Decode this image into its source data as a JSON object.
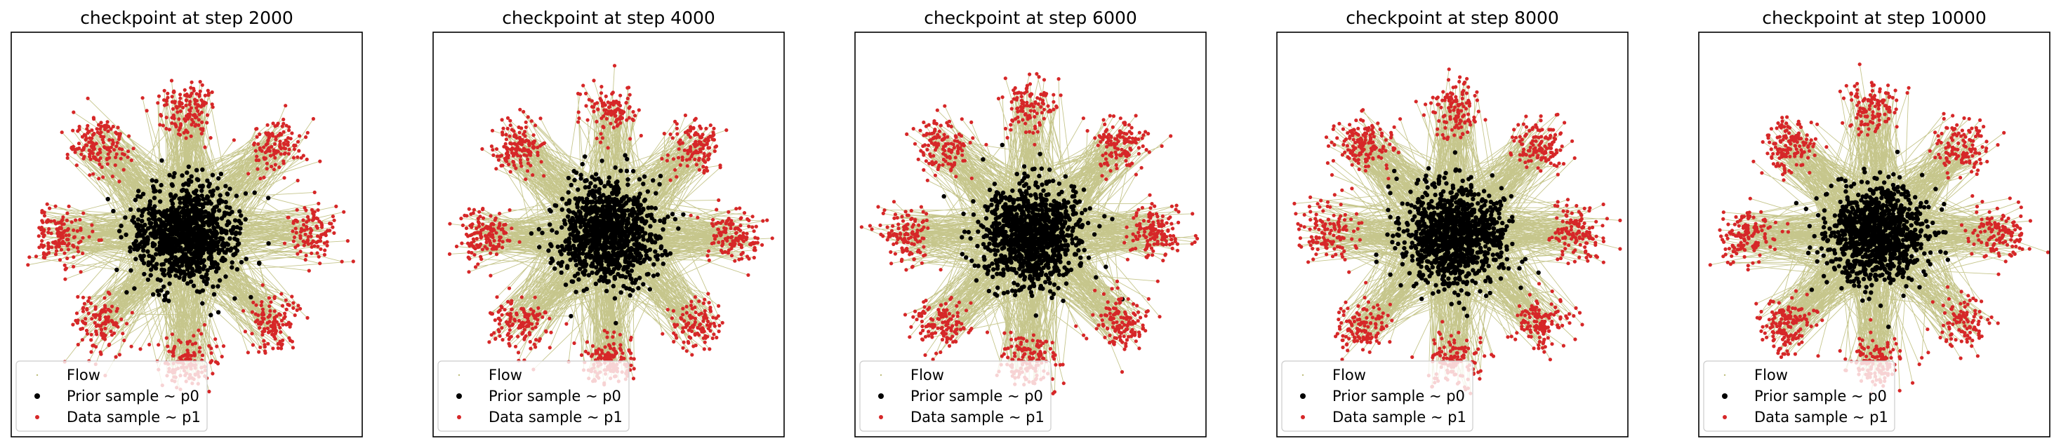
{
  "colors": {
    "flow": "#808000",
    "prior": "#000000",
    "data": "#d62728",
    "background": "#ffffff",
    "axes_frame": "#000000",
    "legend_frame": "#cccccc"
  },
  "legend": {
    "placement": "lower left",
    "entries": [
      {
        "key": "flow",
        "label": "Flow",
        "marker": "tiny-dot"
      },
      {
        "key": "prior",
        "label": "Prior sample ~ p0",
        "marker": "dot"
      },
      {
        "key": "data",
        "label": "Data sample ~ p1",
        "marker": "small-dot"
      }
    ]
  },
  "chart_data": [
    {
      "type": "scatter",
      "title": "checkpoint at step 2000",
      "xlabel": "",
      "ylabel": "",
      "axis_ticks": "off",
      "grid": false,
      "prior": {
        "distribution": "gaussian",
        "center": [
          0,
          0
        ],
        "std": 1.0,
        "n": 1024
      },
      "data": {
        "distribution": "8-gaussians",
        "modes": 8,
        "radius": 5.0,
        "mode_std": 1.0,
        "n": 1024
      },
      "flow_lines": "prior-to-data",
      "xlim": [
        -7.0,
        7.0
      ],
      "ylim": [
        -8.0,
        8.0
      ]
    },
    {
      "type": "scatter",
      "title": "checkpoint at step 4000",
      "xlabel": "",
      "ylabel": "",
      "axis_ticks": "off",
      "grid": false,
      "prior": {
        "distribution": "gaussian",
        "center": [
          0,
          0
        ],
        "std": 1.0,
        "n": 1024
      },
      "data": {
        "distribution": "8-gaussians",
        "modes": 8,
        "radius": 5.0,
        "mode_std": 1.0,
        "n": 1024
      },
      "flow_lines": "prior-to-data",
      "xlim": [
        -7.0,
        7.0
      ],
      "ylim": [
        -8.0,
        8.0
      ]
    },
    {
      "type": "scatter",
      "title": "checkpoint at step 6000",
      "xlabel": "",
      "ylabel": "",
      "axis_ticks": "off",
      "grid": false,
      "prior": {
        "distribution": "gaussian",
        "center": [
          0,
          0
        ],
        "std": 1.0,
        "n": 1024
      },
      "data": {
        "distribution": "8-gaussians",
        "modes": 8,
        "radius": 5.0,
        "mode_std": 1.0,
        "n": 1024
      },
      "flow_lines": "prior-to-data",
      "xlim": [
        -7.0,
        7.0
      ],
      "ylim": [
        -8.0,
        8.0
      ]
    },
    {
      "type": "scatter",
      "title": "checkpoint at step 8000",
      "xlabel": "",
      "ylabel": "",
      "axis_ticks": "off",
      "grid": false,
      "prior": {
        "distribution": "gaussian",
        "center": [
          0,
          0
        ],
        "std": 1.0,
        "n": 1024
      },
      "data": {
        "distribution": "8-gaussians",
        "modes": 8,
        "radius": 5.0,
        "mode_std": 1.0,
        "n": 1024
      },
      "flow_lines": "prior-to-data",
      "xlim": [
        -7.0,
        7.0
      ],
      "ylim": [
        -8.0,
        8.0
      ]
    },
    {
      "type": "scatter",
      "title": "checkpoint at step 10000",
      "xlabel": "",
      "ylabel": "",
      "axis_ticks": "off",
      "grid": false,
      "prior": {
        "distribution": "gaussian",
        "center": [
          0,
          0
        ],
        "std": 1.0,
        "n": 1024
      },
      "data": {
        "distribution": "8-gaussians",
        "modes": 8,
        "radius": 5.0,
        "mode_std": 1.0,
        "n": 1024
      },
      "flow_lines": "prior-to-data",
      "xlim": [
        -7.0,
        7.0
      ],
      "ylim": [
        -8.0,
        8.0
      ]
    }
  ]
}
